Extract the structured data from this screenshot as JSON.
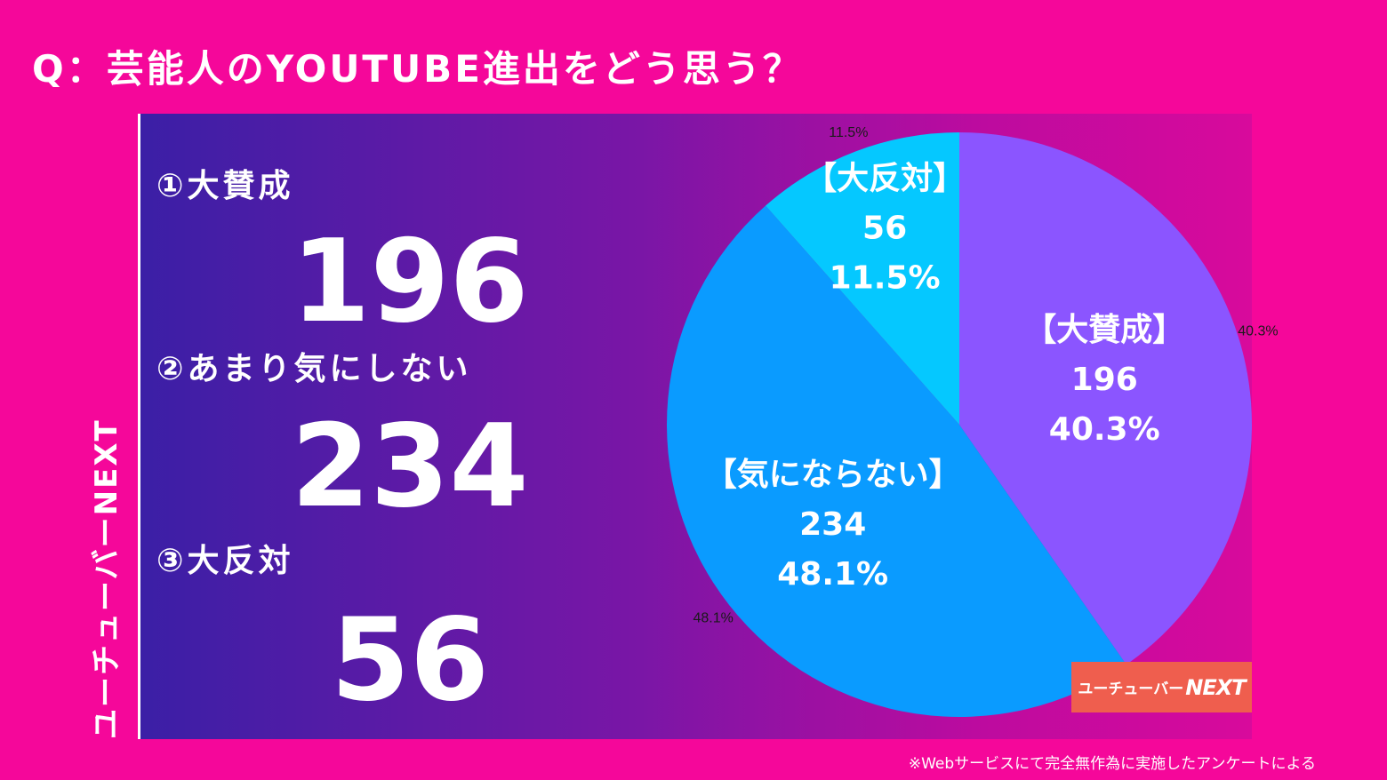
{
  "title": "Q：芸能人のYOUTUBE進出をどう思う？",
  "side_label": "ユーチューバーNEXT",
  "items": [
    {
      "label": "①大賛成",
      "value": "196"
    },
    {
      "label": "②あまり気にしない",
      "value": "234"
    },
    {
      "label": "③大反対",
      "value": "56"
    }
  ],
  "chart_data": {
    "type": "pie",
    "start_angle_deg": 0,
    "direction": "clockwise",
    "slices": [
      {
        "label": "【大賛成】",
        "value": 196,
        "percent_label": "40.3%",
        "outer_label": "40.3%",
        "color": "#8b55ff"
      },
      {
        "label": "【気にならない】",
        "value": 234,
        "percent_label": "48.1%",
        "outer_label": "48.1%",
        "color": "#0a9bff"
      },
      {
        "label": "【大反対】",
        "value": 56,
        "percent_label": "11.5%",
        "outer_label": "11.5%",
        "color": "#05c8ff"
      }
    ]
  },
  "footnote": "※Webサービスにて完全無作為に実施したアンケートによる",
  "logo": {
    "text_a": "ユーチューバー",
    "text_b": "NEXT"
  }
}
